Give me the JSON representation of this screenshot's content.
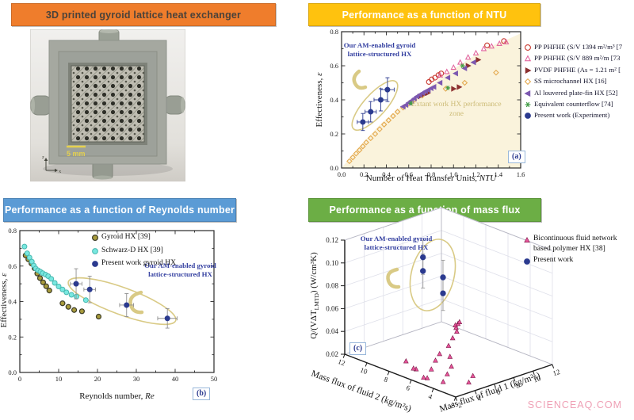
{
  "watermark": "SCIENCEAQ.COM",
  "colors": {
    "tan": "#D9CA85",
    "anno_blue": "#333FA0",
    "zone_fill": "#FAF3DC",
    "zone_text": "#CDBC78",
    "badge_blue": "#2B3A8F",
    "watermark": "#EFA0B5",
    "axis": "#2A2A2A"
  },
  "panels": {
    "photo": {
      "title": "3D printed gyroid lattice heat exchanger",
      "header_bg": "#EF7D2C",
      "header_fg": "#4A423A",
      "scale_label": "5 mm",
      "axis_z": "z",
      "axis_x": "x"
    },
    "ntu": {
      "title": "Performance as a function of NTU",
      "header_bg": "#FFC20E",
      "header_fg": "#FFFFFF"
    },
    "reynolds": {
      "title": "Performance as a function of Reynolds number",
      "header_bg": "#5B9BD5",
      "header_fg": "#FFFFFF"
    },
    "massflux": {
      "title": "Performance as a function of mass flux",
      "header_bg": "#6CAE45",
      "header_fg": "#FFFFFF"
    }
  },
  "chart_data": [
    {
      "id": "a",
      "type": "scatter",
      "xlabel_prefix": "Number of Heat Transfer Units, ",
      "xlabel_italic": "NTU",
      "ylabel_prefix": "Effectiveness, ",
      "ylabel_italic": "ε",
      "xlim": [
        0,
        1.6
      ],
      "ylim": [
        0,
        0.8
      ],
      "xticks": [
        0,
        0.2,
        0.4,
        0.6,
        0.8,
        1.0,
        1.2,
        1.4,
        1.6
      ],
      "yticks": [
        0,
        0.2,
        0.4,
        0.6,
        0.8
      ],
      "xminor": 0.1,
      "yminor": 0.1,
      "xdec": 1,
      "ydec": 1,
      "legend_position": "right",
      "grid": false,
      "badge": "(a)",
      "annotation": "Our AM-enabled gyroid lattice-structured HX",
      "zone_label": "Extant work HX performance zone",
      "zone_polygon": [
        [
          0,
          0
        ],
        [
          0.15,
          0.12
        ],
        [
          0.35,
          0.26
        ],
        [
          0.55,
          0.37
        ],
        [
          0.75,
          0.46
        ],
        [
          0.95,
          0.56
        ],
        [
          1.15,
          0.645
        ],
        [
          1.35,
          0.72
        ],
        [
          1.5,
          0.76
        ],
        [
          1.6,
          0.79
        ],
        [
          1.6,
          0
        ]
      ],
      "series": [
        {
          "name": "PP PHFHE (S/V 1394 m²/m³ [7",
          "marker": "circle-open",
          "color": "#C8382E",
          "points": [
            [
              0.78,
              0.505
            ],
            [
              0.805,
              0.52
            ],
            [
              0.835,
              0.53
            ],
            [
              0.865,
              0.545
            ],
            [
              0.89,
              0.555
            ],
            [
              1.3,
              0.72
            ],
            [
              1.45,
              0.745
            ]
          ]
        },
        {
          "name": "PP PHFHE (S/V 889 m²/m [73",
          "marker": "tri-up-open",
          "color": "#E2679F",
          "points": [
            [
              0.88,
              0.545
            ],
            [
              0.94,
              0.565
            ],
            [
              1.0,
              0.59
            ],
            [
              1.06,
              0.62
            ],
            [
              1.13,
              0.65
            ],
            [
              1.2,
              0.675
            ],
            [
              1.27,
              0.7
            ],
            [
              1.34,
              0.715
            ],
            [
              1.41,
              0.73
            ],
            [
              1.47,
              0.74
            ]
          ]
        },
        {
          "name": "PVDF PHFHE (As = 1.21 m² [",
          "marker": "tri-right-fill",
          "color": "#8C3030",
          "points": [
            [
              0.7,
              0.42
            ],
            [
              0.735,
              0.43
            ],
            [
              0.77,
              0.44
            ],
            [
              1.0,
              0.465
            ],
            [
              1.05,
              0.475
            ],
            [
              1.13,
              0.6
            ],
            [
              1.22,
              0.635
            ]
          ]
        },
        {
          "name": "SS microchannel HX [16]",
          "marker": "diamond-open",
          "color": "#E4A94F",
          "points": [
            [
              0.07,
              0.04
            ],
            [
              0.1,
              0.062
            ],
            [
              0.13,
              0.085
            ],
            [
              0.16,
              0.105
            ],
            [
              0.19,
              0.127
            ],
            [
              0.22,
              0.15
            ],
            [
              0.26,
              0.175
            ],
            [
              0.3,
              0.2
            ],
            [
              0.34,
              0.228
            ],
            [
              0.38,
              0.255
            ],
            [
              0.42,
              0.28
            ],
            [
              0.46,
              0.305
            ],
            [
              0.5,
              0.33
            ],
            [
              0.55,
              0.355
            ],
            [
              0.6,
              0.378
            ],
            [
              0.65,
              0.4
            ],
            [
              0.72,
              0.425
            ],
            [
              0.93,
              0.465
            ],
            [
              1.1,
              0.5
            ],
            [
              1.38,
              0.56
            ]
          ]
        },
        {
          "name": "Al louvered plate-fin HX [52]",
          "marker": "tri-left-fill",
          "color": "#7C58B0",
          "points": [
            [
              0.55,
              0.36
            ],
            [
              0.575,
              0.37
            ],
            [
              0.6,
              0.383
            ],
            [
              0.625,
              0.395
            ],
            [
              0.65,
              0.408
            ],
            [
              0.675,
              0.42
            ],
            [
              0.7,
              0.43
            ],
            [
              0.725,
              0.44
            ],
            [
              0.75,
              0.45
            ],
            [
              0.775,
              0.458
            ],
            [
              0.8,
              0.468
            ],
            [
              0.825,
              0.476
            ],
            [
              0.88,
              0.5
            ],
            [
              0.95,
              0.53
            ],
            [
              1.02,
              0.555
            ],
            [
              1.1,
              0.585
            ],
            [
              1.18,
              0.62
            ]
          ]
        },
        {
          "name": "Equivalent counterflow [74]",
          "marker": "star",
          "color": "#3F9B43",
          "points": [
            [
              0.62,
              0.38
            ],
            [
              0.95,
              0.47
            ],
            [
              1.08,
              0.6
            ]
          ]
        },
        {
          "name": "Present work (Experiment)",
          "marker": "circle-fill",
          "color": "#2B3A8F",
          "err_color": "#2B3A8F",
          "points": [
            [
              0.19,
              0.27
            ],
            [
              0.26,
              0.33
            ],
            [
              0.35,
              0.4
            ],
            [
              0.41,
              0.46
            ]
          ],
          "xerr": [
            0.05,
            0.05,
            0.06,
            0.06
          ],
          "yerr": [
            0.05,
            0.06,
            0.065,
            0.07
          ]
        }
      ]
    },
    {
      "id": "b",
      "type": "scatter",
      "xlabel_prefix": "Reynolds number, ",
      "xlabel_italic": "Re",
      "ylabel_prefix": "Effectiveness, ",
      "ylabel_italic": "ε",
      "xlim": [
        0,
        50
      ],
      "ylim": [
        0,
        0.8
      ],
      "xticks": [
        0,
        10,
        20,
        30,
        40,
        50
      ],
      "yticks": [
        0,
        0.2,
        0.4,
        0.6,
        0.8
      ],
      "xminor": 5,
      "yminor": 0.1,
      "xdec": 0,
      "ydec": 1,
      "legend_position": "top-right-inside",
      "grid": false,
      "badge": "(b)",
      "annotation": "Our AM-enabled gyroid lattice-structured HX",
      "series": [
        {
          "name": "Gyroid HX [39]",
          "marker": "circle-ring",
          "color": "#A89B3C",
          "points": [
            [
              1.5,
              0.66
            ],
            [
              2.2,
              0.638
            ],
            [
              3.0,
              0.615
            ],
            [
              3.8,
              0.588
            ],
            [
              4.5,
              0.558
            ],
            [
              5.2,
              0.532
            ],
            [
              6.0,
              0.508
            ],
            [
              6.8,
              0.486
            ],
            [
              7.6,
              0.462
            ],
            [
              11.0,
              0.39
            ],
            [
              12.5,
              0.37
            ],
            [
              14.0,
              0.352
            ],
            [
              16.0,
              0.345
            ],
            [
              20.3,
              0.315
            ]
          ]
        },
        {
          "name": "Schwarz-D HX [39]",
          "marker": "circle-ring2",
          "color": "#79E8E0",
          "points": [
            [
              1.2,
              0.71
            ],
            [
              1.9,
              0.672
            ],
            [
              2.5,
              0.648
            ],
            [
              3.1,
              0.625
            ],
            [
              3.6,
              0.603
            ],
            [
              4.1,
              0.586
            ],
            [
              4.7,
              0.576
            ],
            [
              5.3,
              0.568
            ],
            [
              5.9,
              0.56
            ],
            [
              6.6,
              0.552
            ],
            [
              7.3,
              0.543
            ],
            [
              8.1,
              0.528
            ],
            [
              9.0,
              0.505
            ],
            [
              10.0,
              0.485
            ],
            [
              11.0,
              0.468
            ],
            [
              12.0,
              0.452
            ],
            [
              13.3,
              0.438
            ],
            [
              14.6,
              0.428
            ],
            [
              17.0,
              0.408
            ]
          ]
        },
        {
          "name": "Present work gyroid HX",
          "marker": "circle-fill",
          "color": "#2B3A8F",
          "err_color": "#8F8F8F",
          "points": [
            [
              14.5,
              0.5
            ],
            [
              18.0,
              0.468
            ],
            [
              27.5,
              0.38
            ],
            [
              38.0,
              0.305
            ]
          ],
          "xerr": [
            1.5,
            1.5,
            1.8,
            2.5
          ],
          "yerr": [
            0.085,
            0.075,
            0.065,
            0.055
          ]
        }
      ]
    },
    {
      "id": "c",
      "type": "scatter3d",
      "xlabel": "Mass flux of fluid 1 (kg/m²s)",
      "ylabel": "Mass flux of fluid 2 (kg/m²s)",
      "zlabel_p1": "Q/(VΔT",
      "zlabel_sub": "LMTD",
      "zlabel_p2": ") (W/cm³K)",
      "xlim": [
        2,
        12
      ],
      "ylim": [
        2,
        12
      ],
      "zlim": [
        0.02,
        0.12
      ],
      "xticks": [
        2,
        4,
        6,
        8,
        10,
        12
      ],
      "yticks": [
        2,
        4,
        6,
        8,
        10,
        12
      ],
      "zticks": [
        0.02,
        0.04,
        0.06,
        0.08,
        0.1,
        0.12
      ],
      "zdec": 2,
      "badge": "(c)",
      "annotation": "Our AM-enabled gyroid lattice-structured HX",
      "series": [
        {
          "name": "Bicontinuous fluid network based polymer HX  [38]",
          "marker": "tri-up-fill",
          "color": "#E8569B",
          "points": [
            [
              2.5,
              5,
              0.024
            ],
            [
              2.5,
              6,
              0.028
            ],
            [
              2.6,
              7,
              0.031
            ],
            [
              2.7,
              5.5,
              0.022
            ],
            [
              2.8,
              6.5,
              0.026
            ],
            [
              3,
              4,
              0.023
            ],
            [
              3.5,
              5.5,
              0.027
            ],
            [
              4,
              4.5,
              0.025
            ],
            [
              4.5,
              6,
              0.03
            ],
            [
              5,
              5,
              0.027
            ],
            [
              5.5,
              6.5,
              0.031
            ],
            [
              6,
              6,
              0.029
            ],
            [
              7,
              7,
              0.032
            ],
            [
              8,
              7.5,
              0.034
            ],
            [
              9,
              8,
              0.035
            ],
            [
              9.5,
              8.5,
              0.035
            ],
            [
              10,
              9,
              0.034
            ],
            [
              10.5,
              9.2,
              0.033
            ],
            [
              11,
              9.5,
              0.032
            ],
            [
              4.5,
              3,
              0.022
            ],
            [
              5.5,
              3.5,
              0.023
            ]
          ]
        },
        {
          "name": "Present work",
          "marker": "circle-fill",
          "color": "#2B3A8F",
          "err_color": "#9A9A9A",
          "zerr": 0.015,
          "points": [
            [
              5.5,
              8,
              0.11
            ],
            [
              5.5,
              8,
              0.098
            ],
            [
              7,
              7.5,
              0.09
            ],
            [
              7,
              7.5,
              0.076
            ]
          ]
        }
      ]
    }
  ]
}
